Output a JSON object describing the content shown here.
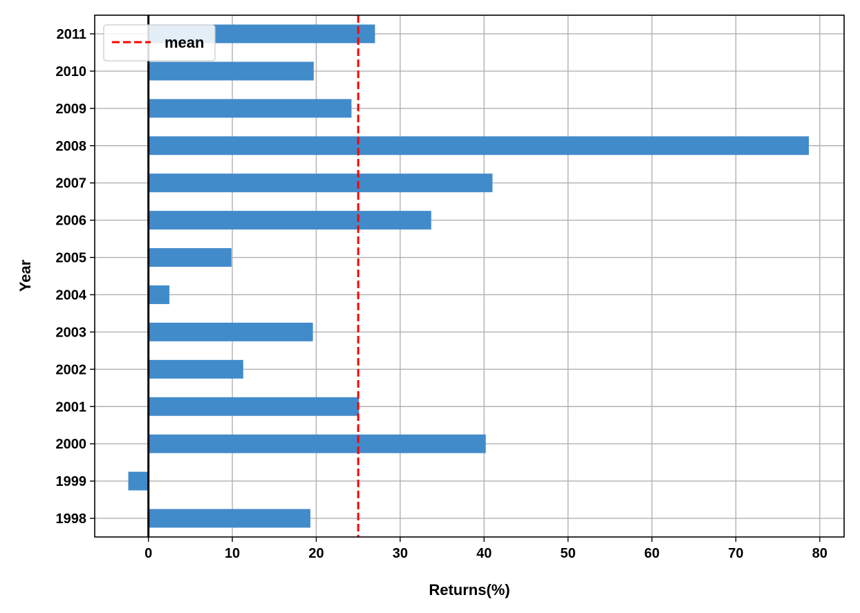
{
  "chart_data": {
    "type": "bar",
    "orientation": "horizontal",
    "categories": [
      "1998",
      "1999",
      "2000",
      "2001",
      "2002",
      "2003",
      "2004",
      "2005",
      "2006",
      "2007",
      "2008",
      "2009",
      "2010",
      "2011"
    ],
    "values": [
      19.3,
      -2.4,
      40.2,
      25.1,
      11.3,
      19.6,
      2.5,
      9.9,
      33.7,
      41.0,
      78.7,
      24.2,
      19.7,
      27.0
    ],
    "mean": 25.0,
    "title": "",
    "xlabel": "Returns(%)",
    "ylabel": "Year",
    "xlim": [
      -6.4,
      82.9
    ],
    "xticks": [
      0,
      10,
      20,
      30,
      40,
      50,
      60,
      70,
      80
    ],
    "grid": true,
    "legend": {
      "label": "mean",
      "position": "top-left"
    },
    "colors": {
      "bar": "#428bca",
      "mean_line": "#ff0000",
      "grid": "#b0b0b0",
      "zero_line": "#000000"
    }
  }
}
